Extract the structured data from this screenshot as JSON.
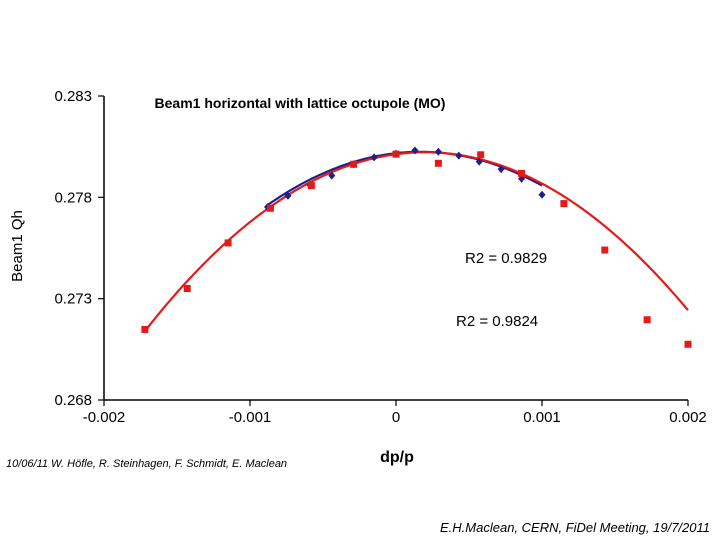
{
  "chart_data": {
    "type": "scatter",
    "title": "Beam1 horizontal with lattice octupole (MO)",
    "xlabel": "dp/p",
    "ylabel": "Beam1 Qh",
    "xlim": [
      -0.002,
      0.002
    ],
    "ylim": [
      0.268,
      0.283
    ],
    "xticks": [
      "-0.002",
      "-0.001",
      "0",
      "0.001",
      "0.002"
    ],
    "yticks": [
      "0.283",
      "0.278",
      "0.273",
      "0.268"
    ],
    "grid": false,
    "series": [
      {
        "color": "#1f1f8c",
        "marker": "diamond",
        "x": [
          -0.00088,
          -0.00074,
          -0.00059,
          -0.00044,
          -0.00029,
          -0.00015,
          0.0,
          0.00013,
          0.00029,
          0.00043,
          0.00057,
          0.00072,
          0.00086,
          0.001
        ],
        "y": [
          0.27752,
          0.27808,
          0.27861,
          0.27907,
          0.27963,
          0.27997,
          0.28015,
          0.28031,
          0.28025,
          0.28006,
          0.27976,
          0.27939,
          0.27892,
          0.27813
        ],
        "fit_r2": "R2 = 0.9824",
        "fit_color": "#1f1f8c",
        "fit_coef": [
          0.28018,
          0.8,
          -2400
        ],
        "fit_range": [
          -0.00088,
          0.001
        ]
      },
      {
        "color": "#e31a1a",
        "marker": "square",
        "x": [
          -0.00172,
          -0.00143,
          -0.00115,
          -0.00086,
          -0.00058,
          -0.00029,
          0.0,
          0.00029,
          0.00058,
          0.00086,
          0.00115,
          0.00143,
          0.00172,
          0.002
        ],
        "y": [
          0.27148,
          0.2735,
          0.27575,
          0.27746,
          0.27858,
          0.27963,
          0.28013,
          0.27968,
          0.2801,
          0.27918,
          0.27769,
          0.2754,
          0.27196,
          0.27075
        ],
        "fit_r2": "R2 = 0.9829",
        "fit_color": "#e31a1a",
        "fit_coef": [
          0.28013,
          0.95,
          -2400
        ],
        "fit_range": [
          -0.00172,
          0.002
        ]
      }
    ]
  },
  "footer": {
    "date_credit": "10/06/11  W. Höfle, R. Steinhagen, F. Schmidt, E. Maclean",
    "meeting_credit": "E.H.Maclean, CERN, FiDel Meeting, 19/7/2011"
  }
}
